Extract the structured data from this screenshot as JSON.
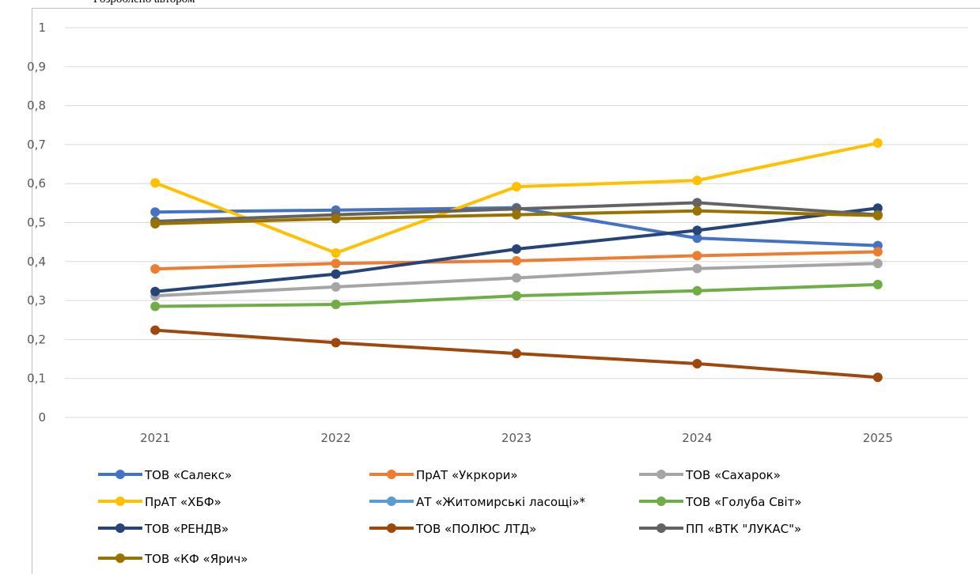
{
  "caption": "Розроблено автором",
  "chart_data": {
    "type": "line",
    "categories": [
      "2021",
      "2022",
      "2023",
      "2024",
      "2025"
    ],
    "ylim": [
      0,
      1
    ],
    "yticks": [
      "0",
      "0,1",
      "0,2",
      "0,3",
      "0,4",
      "0,5",
      "0,6",
      "0,7",
      "0,8",
      "0,9",
      "1"
    ],
    "grid": true,
    "legend_position": "bottom",
    "series": [
      {
        "name": "ТОВ «Салекс»",
        "color": "#4472c4",
        "values": [
          0.527,
          0.532,
          0.538,
          0.46,
          0.441
        ]
      },
      {
        "name": "ПрАТ «Укркори»",
        "color": "#ed7d31",
        "values": [
          0.381,
          0.395,
          0.402,
          0.415,
          0.425
        ]
      },
      {
        "name": "ТОВ «Сахарок»",
        "color": "#a5a5a5",
        "values": [
          0.312,
          0.335,
          0.358,
          0.382,
          0.395
        ]
      },
      {
        "name": "ПрАТ «ХБФ»",
        "color": "#ffc000",
        "values": [
          0.602,
          0.422,
          0.592,
          0.608,
          0.704
        ]
      },
      {
        "name": "АТ «Житомирські ласощі»*",
        "color": "#5b9bd5",
        "values": [
          null,
          null,
          null,
          null,
          null
        ]
      },
      {
        "name": "ТОВ «Голуба Світ»",
        "color": "#70ad47",
        "values": [
          0.285,
          0.29,
          0.312,
          0.325,
          0.341
        ]
      },
      {
        "name": "ТОВ «РЕНДВ»",
        "color": "#264478",
        "values": [
          0.323,
          0.368,
          0.432,
          0.48,
          0.537
        ]
      },
      {
        "name": "ТОВ «ПОЛЮС ЛТД»",
        "color": "#9e480e",
        "values": [
          0.224,
          0.192,
          0.164,
          0.138,
          0.103
        ]
      },
      {
        "name": "ПП «ВТК \"ЛУКАС\"»",
        "color": "#636363",
        "values": [
          0.503,
          0.52,
          0.535,
          0.551,
          0.52
        ]
      },
      {
        "name": "ТОВ «КФ «Ярич»",
        "color": "#997300",
        "values": [
          0.497,
          0.51,
          0.52,
          0.53,
          0.518
        ]
      }
    ]
  }
}
